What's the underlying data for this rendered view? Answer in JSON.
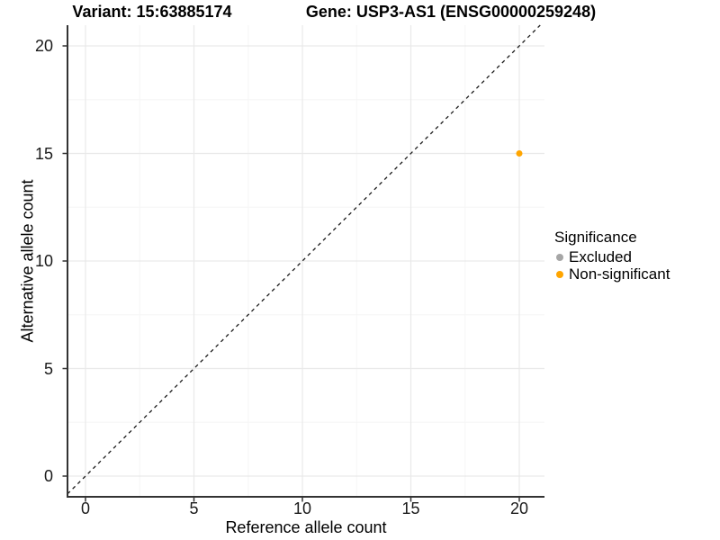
{
  "chart_data": {
    "type": "scatter",
    "title_left": "Variant: 15:63885174",
    "title_right": "Gene: USP3-AS1 (ENSG00000259248)",
    "xlabel": "Reference allele count",
    "ylabel": "Alternative allele count",
    "xlim": [
      -0.8,
      21.2
    ],
    "ylim": [
      -1.0,
      21.0
    ],
    "xticks": [
      0,
      5,
      10,
      15,
      20
    ],
    "yticks": [
      0,
      5,
      10,
      15,
      20
    ],
    "grid": "major and minor gridlines, light gray, white background",
    "reference_line": {
      "kind": "identity y=x",
      "style": "dashed",
      "color": "#1a1a1a"
    },
    "legend": {
      "title": "Significance",
      "position": "right",
      "items": [
        {
          "label": "Excluded",
          "color": "#a6a6a6"
        },
        {
          "label": "Non-significant",
          "color": "#ffa500"
        }
      ]
    },
    "series": [
      {
        "name": "Excluded",
        "color": "#a6a6a6",
        "points": []
      },
      {
        "name": "Non-significant",
        "color": "#ffa500",
        "points": [
          {
            "x": 20,
            "y": 15
          }
        ]
      }
    ]
  }
}
